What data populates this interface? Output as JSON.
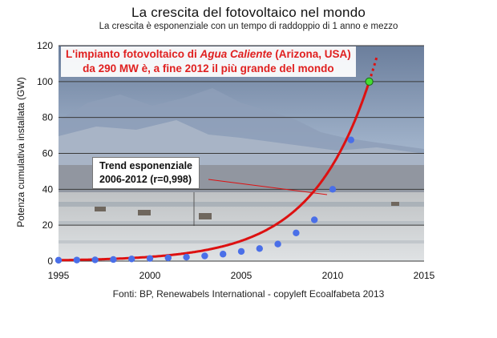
{
  "chart_data": {
    "type": "scatter",
    "title": "La crescita del fotovoltaico nel mondo",
    "subtitle": "La crescita è esponenziale con un tempo di raddoppio di 1 anno e mezzo",
    "ylabel": "Potenza cumulativa installata (GW)",
    "xlabel": "",
    "xlim": [
      1995,
      2015
    ],
    "ylim": [
      0,
      120
    ],
    "xticks": [
      "1995",
      "2000",
      "2005",
      "2010",
      "2015"
    ],
    "yticks": [
      "0",
      "20",
      "40",
      "60",
      "80",
      "100",
      "120"
    ],
    "grid": "horizontal",
    "series": [
      {
        "kind": "points",
        "color": "#4a6fe8",
        "x": [
          1995,
          1996,
          1997,
          1998,
          1999,
          2000,
          2001,
          2002,
          2003,
          2004,
          2005,
          2006,
          2007,
          2008,
          2009,
          2010,
          2011
        ],
        "y": [
          0.5,
          0.6,
          0.7,
          0.9,
          1.2,
          1.5,
          1.8,
          2.2,
          2.9,
          3.9,
          5.4,
          7.0,
          9.5,
          15.7,
          23.0,
          40.0,
          67.5
        ]
      },
      {
        "kind": "highlight-point",
        "color": "#44dd33",
        "x": [
          2012
        ],
        "y": [
          100
        ]
      },
      {
        "kind": "trend-curve",
        "color": "#dd1111",
        "model": "exponential",
        "x_end_solid": 2012,
        "x_end_dotted": 2012.45
      }
    ]
  },
  "annotations": {
    "callout_line1_prefix": "L'impianto fotovoltaico di ",
    "callout_line1_em": "Agua Caliente",
    "callout_line1_suffix": " (Arizona, USA)",
    "callout_line2": "da 290 MW è, a fine 2012 il più grande del mondo",
    "trend_line1": "Trend esponenziale",
    "trend_line2": "2006-2012 (r=0,998)"
  },
  "footer": {
    "source": "Fonti: BP, Renewabels International - copyleft Ecoalfabeta 2013"
  }
}
